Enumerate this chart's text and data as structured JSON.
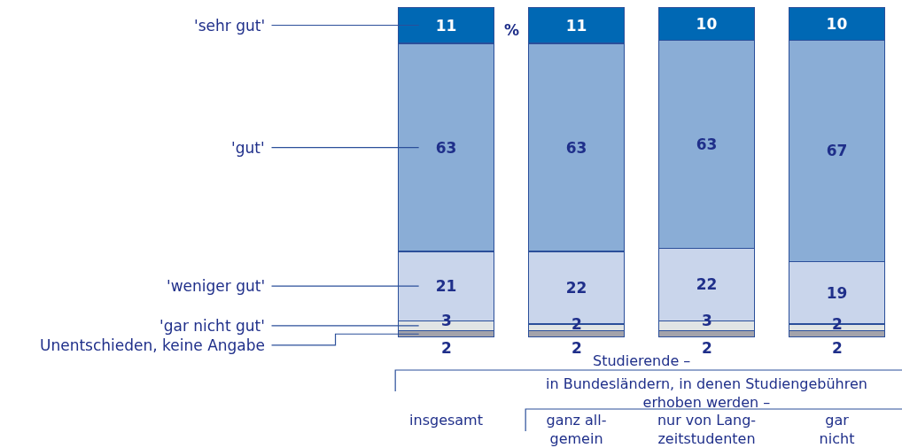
{
  "chart_data": {
    "type": "bar",
    "stacked": true,
    "data_labels": true,
    "legend": false,
    "ylim": [
      0,
      100
    ],
    "tick_labels": "x",
    "categories": [
      "insgesamt",
      "ganz all-\ngemein",
      "nur von Lang-\nzeitstudenten",
      "gar\nnicht"
    ],
    "series": [
      {
        "name": "Unentschieden, keine Angabe",
        "color": "#a3a3ab",
        "values": [
          2,
          2,
          2,
          2
        ]
      },
      {
        "name": "'gar nicht gut'",
        "color": "#e1e5e5",
        "values": [
          3,
          2,
          3,
          2
        ]
      },
      {
        "name": "'weniger gut'",
        "color": "#c9d5eb",
        "values": [
          21,
          22,
          22,
          19
        ]
      },
      {
        "name": "'gut'",
        "color": "#8aadd6",
        "values": [
          63,
          63,
          63,
          67
        ]
      },
      {
        "name": "'sehr gut'",
        "color": "#0068b4",
        "values": [
          11,
          11,
          10,
          10
        ]
      }
    ],
    "annotations": [
      "%",
      "Studierende –",
      "in Bundesländern, in denen Studiengebühren\nerhoben werden –"
    ]
  }
}
